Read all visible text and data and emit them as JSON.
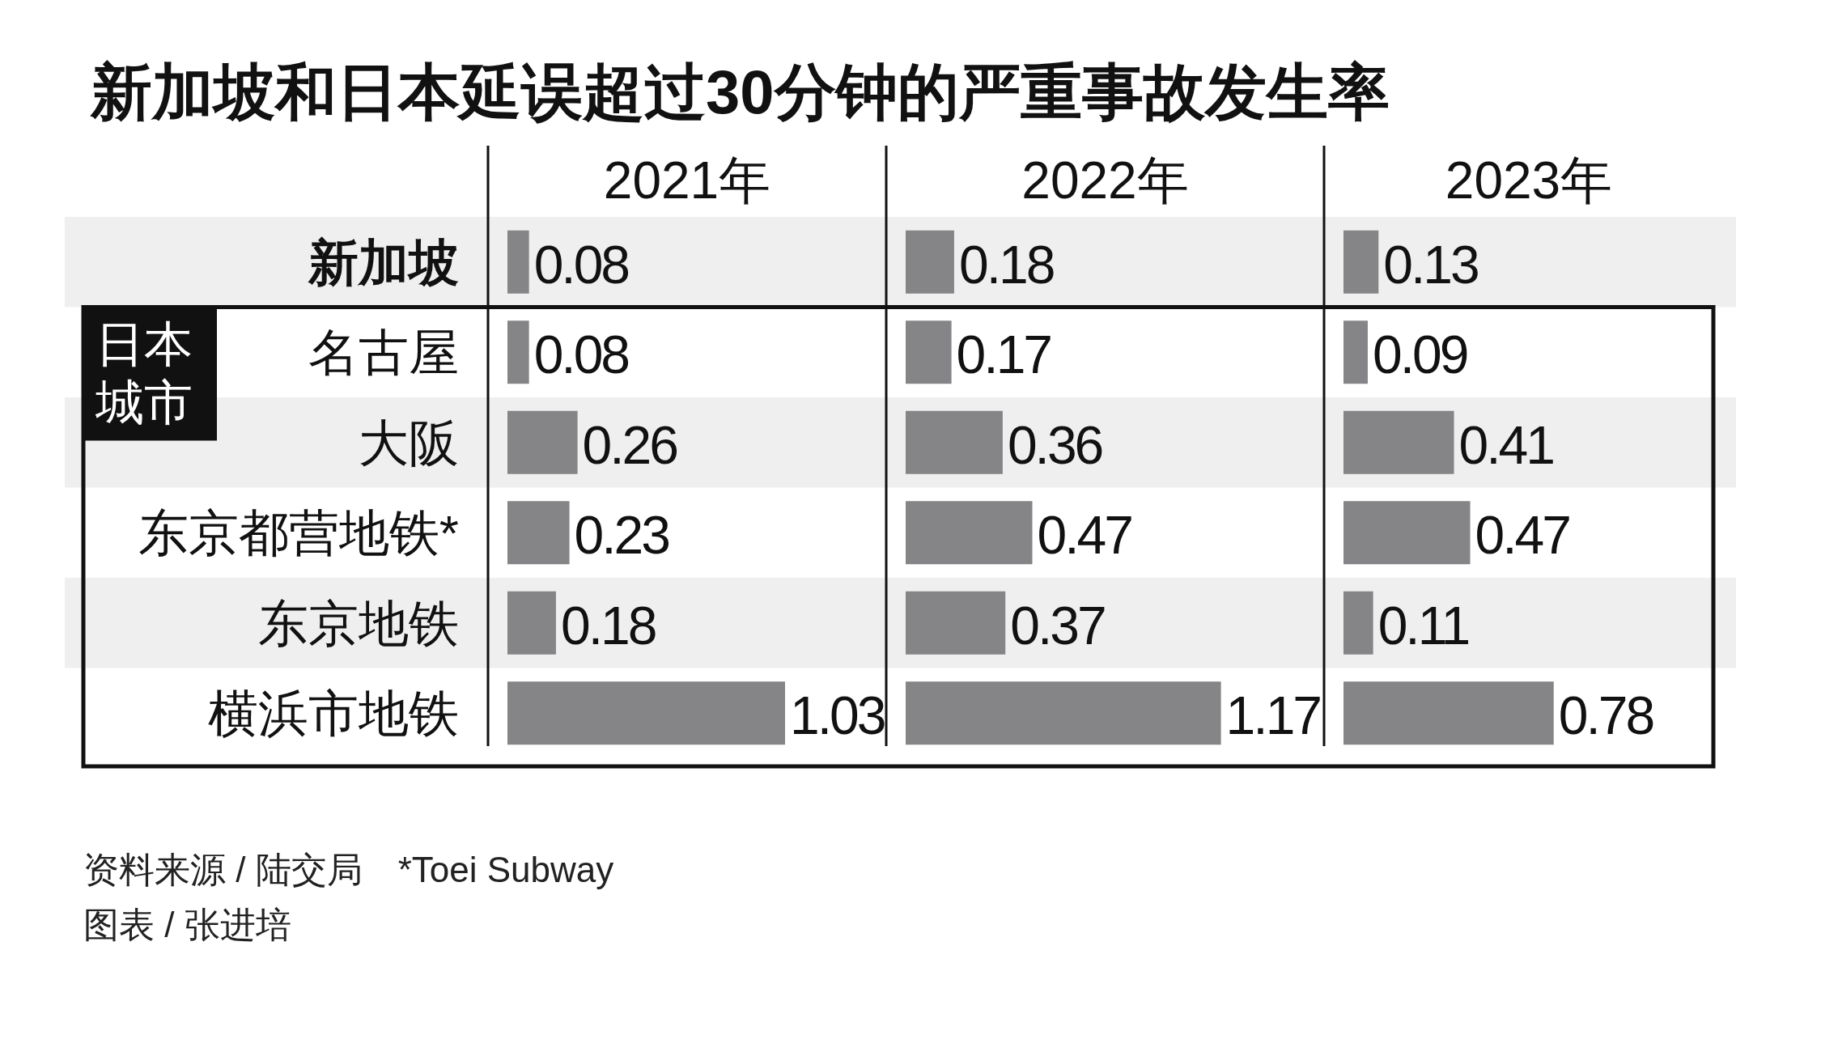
{
  "chart_data": [
    {
      "type": "bar",
      "orientation": "horizontal",
      "title": "新加坡和日本延误超过30分钟的严重事故发生率",
      "subtitle": "2021年",
      "categories": [
        "新加坡",
        "名古屋",
        "大阪",
        "东京都营地铁*",
        "东京地铁",
        "横浜市地铁"
      ],
      "values": [
        0.08,
        0.08,
        0.26,
        0.23,
        0.18,
        1.03
      ],
      "color": "#858588",
      "data_labels": true,
      "annotations": [
        "日本城市",
        "资料来源 / 陆交局　*Toei Subway",
        "图表 / 张进培"
      ]
    },
    {
      "type": "bar",
      "orientation": "horizontal",
      "subtitle": "2022年",
      "categories": [
        null,
        null,
        null,
        null,
        null,
        null
      ],
      "values": [
        0.18,
        0.17,
        0.36,
        0.47,
        0.37,
        1.17
      ],
      "color": "#858588",
      "data_labels": true
    },
    {
      "type": "bar",
      "orientation": "horizontal",
      "subtitle": "2023年",
      "categories": [
        null,
        null,
        null,
        null,
        null,
        null
      ],
      "values": [
        0.13,
        0.09,
        0.41,
        0.47,
        0.11,
        0.78
      ],
      "color": "#858588",
      "data_labels": true
    }
  ]
}
